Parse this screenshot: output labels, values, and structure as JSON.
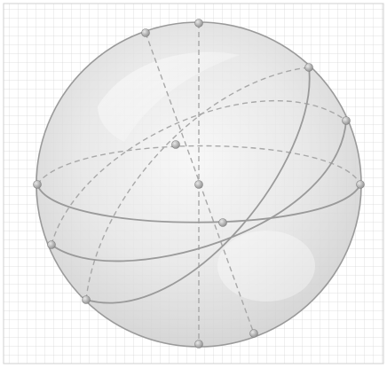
{
  "figure": {
    "subject": "sphere-with-great-circles",
    "background": "grid-paper",
    "colors": {
      "paper": "#ffffff",
      "grid": "#d6d6d6",
      "frame": "#cfcfcf",
      "sphere_fill": "#e3e3e3",
      "sphere_edge": "#9a9a9a",
      "front_arc": "#9a9a9a",
      "back_arc": "#a8a8a8",
      "vertex": "#a3a3a3"
    },
    "great_circles": [
      {
        "name": "equator-circle",
        "style": "front-solid-back-dashed"
      },
      {
        "name": "tilted-circle-a",
        "style": "front-solid-back-dashed"
      },
      {
        "name": "tilted-circle-b",
        "style": "front-solid-back-dashed"
      },
      {
        "name": "meridian-vertical",
        "style": "dashed"
      },
      {
        "name": "meridian-oblique",
        "style": "dashed"
      }
    ],
    "vertex_count": 14
  }
}
